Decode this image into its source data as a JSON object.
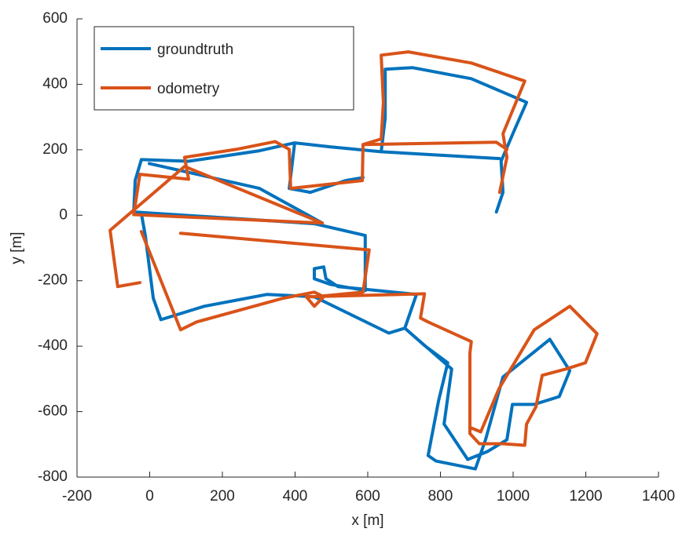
{
  "chart_data": {
    "type": "line",
    "xlabel": "x [m]",
    "ylabel": "y [m]",
    "xlim": [
      -200,
      1400
    ],
    "xticks": [
      -200,
      0,
      200,
      400,
      600,
      800,
      1000,
      1200,
      1400
    ],
    "ylim": [
      -800,
      600
    ],
    "yticks": [
      -800,
      -600,
      -400,
      -200,
      0,
      200,
      400,
      600
    ],
    "legend": "upper left",
    "series": [
      {
        "name": "groundtruth",
        "color": "#0072BD",
        "x": [
          954,
          972,
          967,
          1004,
          1037,
          885,
          723,
          648,
          648,
          637,
          496,
          399,
          384,
          442,
          539,
          587,
          null,
          963,
          637,
          null,
          399,
          302,
          107,
          -23,
          -40,
          -44,
          237,
          453,
          593,
          593,
          496,
          453,
          453,
          479,
          485,
          518,
          734,
          702,
          756,
          820,
          795,
          766,
          788,
          896,
          924,
          972,
          1101,
          1156,
          1127,
          1058,
          998,
          983,
          929,
          875,
          810,
          831,
          702,
          658,
          453,
          323,
          150,
          31,
          10,
          -12,
          -23,
          null,
          -1,
          302,
          475
        ],
        "values": [
          10,
          70,
          165,
          261,
          345,
          417,
          451,
          446,
          297,
          194,
          209,
          221,
          82,
          70,
          106,
          115,
          null,
          173,
          194,
          null,
          221,
          197,
          165,
          170,
          106,
          10,
          -10,
          -26,
          -62,
          -230,
          -211,
          -194,
          -163,
          -158,
          -194,
          -218,
          -242,
          -345,
          -398,
          -451,
          -566,
          -734,
          -751,
          -775,
          -686,
          -494,
          -379,
          -475,
          -554,
          -578,
          -578,
          -686,
          -722,
          -746,
          -638,
          -470,
          -345,
          -360,
          -249,
          -242,
          -278,
          -319,
          -254,
          -62,
          5,
          null,
          158,
          82,
          -24
        ]
      },
      {
        "name": "odometry",
        "color": "#D95319",
        "x": [
          963,
          983,
          972,
          1032,
          885,
          712,
          637,
          643,
          637,
          587,
          585,
          388,
          384,
          345,
          237,
          96,
          107,
          -27,
          -44,
          475,
          96,
          -109,
          -88,
          -27,
          null,
          -23,
          85,
          129,
          366,
          453,
          479,
          453,
          431,
          756,
          745,
          766,
          885,
          881,
          881,
          907,
          972,
          1032,
          1037,
          1063,
          1080,
          1145,
          1199,
          1231,
          1156,
          1058,
          961,
          911,
          885,
          null,
          587,
          954,
          983,
          null,
          85,
          604,
          587,
          453
        ],
        "values": [
          70,
          177,
          249,
          410,
          465,
          499,
          489,
          345,
          233,
          216,
          106,
          82,
          201,
          225,
          201,
          177,
          110,
          125,
          2,
          -24,
          149,
          -46,
          -218,
          -206,
          null,
          -50,
          -350,
          -326,
          -254,
          -235,
          -249,
          -278,
          -249,
          -240,
          -314,
          -326,
          -386,
          -422,
          -667,
          -698,
          -698,
          -703,
          -638,
          -585,
          -489,
          -470,
          -451,
          -362,
          -278,
          -350,
          -530,
          -662,
          -650,
          null,
          216,
          223,
          201,
          null,
          -55,
          -106,
          -235,
          -249
        ]
      }
    ]
  }
}
